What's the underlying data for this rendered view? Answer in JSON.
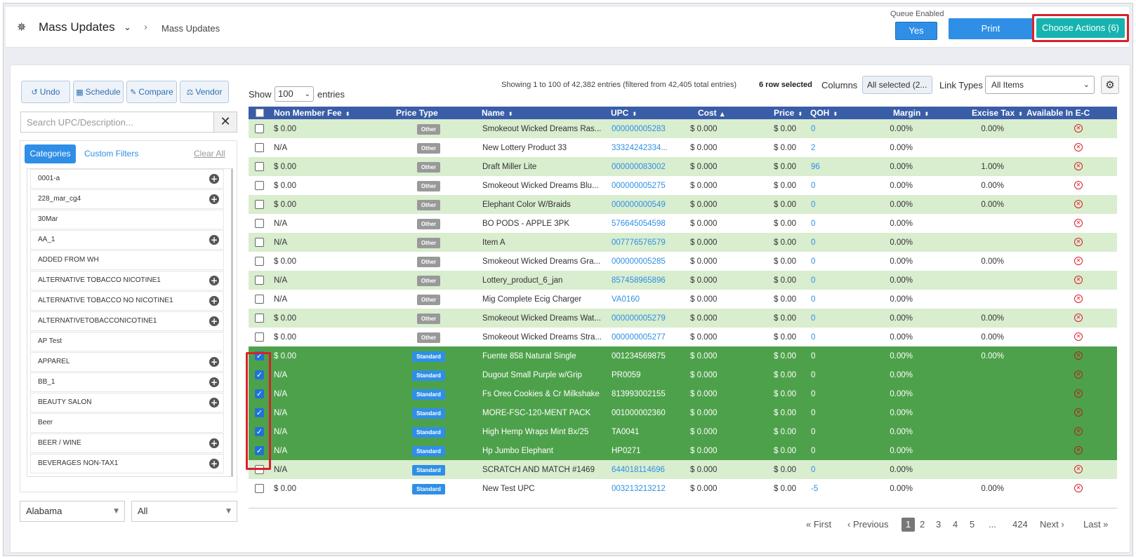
{
  "header": {
    "title": "Mass Updates",
    "breadcrumb": "Mass Updates",
    "queue_label": "Queue Enabled",
    "queue_value": "Yes",
    "print_label": "Print",
    "actions_label": "Choose Actions (6)"
  },
  "toolbar": {
    "undo": "Undo",
    "schedule": "Schedule",
    "compare": "Compare",
    "vendor": "Vendor"
  },
  "search": {
    "placeholder": "Search UPC/Description..."
  },
  "filters": {
    "tab_categories": "Categories",
    "tab_custom": "Custom Filters",
    "clear_all": "Clear All",
    "categories": [
      {
        "label": "0001-a",
        "plus": true
      },
      {
        "label": "228_mar_cg4",
        "plus": true
      },
      {
        "label": "30Mar",
        "plus": false
      },
      {
        "label": "AA_1",
        "plus": true
      },
      {
        "label": "ADDED FROM WH",
        "plus": false
      },
      {
        "label": "ALTERNATIVE TOBACCO NICOTINE1",
        "plus": true
      },
      {
        "label": "ALTERNATIVE TOBACCO NO NICOTINE1",
        "plus": true
      },
      {
        "label": "ALTERNATIVETOBACCONICOTINE1",
        "plus": true
      },
      {
        "label": "AP Test",
        "plus": false
      },
      {
        "label": "APPAREL",
        "plus": true
      },
      {
        "label": "BB_1",
        "plus": true
      },
      {
        "label": "BEAUTY SALON",
        "plus": true
      },
      {
        "label": "Beer",
        "plus": false
      },
      {
        "label": "BEER / WINE",
        "plus": true
      },
      {
        "label": "BEVERAGES NON-TAX1",
        "plus": true
      }
    ],
    "state_select": "Alabama",
    "type_select": "All"
  },
  "table_controls": {
    "show_label": "Show",
    "page_size": "100",
    "entries_label": "entries",
    "showing": "Showing 1 to 100 of 42,382 entries (filtered from 42,405 total entries)",
    "row_selected": "6 row selected",
    "columns_label": "Columns",
    "columns_value": "All selected (2...",
    "link_types_label": "Link Types",
    "link_types_value": "All Items"
  },
  "table": {
    "columns": [
      "Non Member Fee",
      "Price Type",
      "Name",
      "UPC",
      "Cost",
      "Price",
      "QOH",
      "Margin",
      "Excise Tax",
      "Available In E-C"
    ],
    "rows": [
      {
        "fee": "$ 0.00",
        "type": "Other",
        "name": "Smokeout Wicked Dreams Ras...",
        "upc": "000000005283",
        "cost": "$ 0.000",
        "price": "$ 0.00",
        "qoh": "0",
        "margin": "0.00%",
        "excise": "0.00%",
        "checked": false,
        "style": "green",
        "link": true
      },
      {
        "fee": "N/A",
        "type": "Other",
        "name": "New Lottery Product 33",
        "upc": "33324242334...",
        "cost": "$ 0.000",
        "price": "$ 0.00",
        "qoh": "2",
        "margin": "0.00%",
        "excise": "",
        "checked": false,
        "style": "white",
        "link": true
      },
      {
        "fee": "$ 0.00",
        "type": "Other",
        "name": "Draft Miller Lite",
        "upc": "000000083002",
        "cost": "$ 0.000",
        "price": "$ 0.00",
        "qoh": "96",
        "margin": "0.00%",
        "excise": "1.00%",
        "checked": false,
        "style": "green",
        "link": true
      },
      {
        "fee": "$ 0.00",
        "type": "Other",
        "name": "Smokeout Wicked Dreams Blu...",
        "upc": "000000005275",
        "cost": "$ 0.000",
        "price": "$ 0.00",
        "qoh": "0",
        "margin": "0.00%",
        "excise": "0.00%",
        "checked": false,
        "style": "white",
        "link": true
      },
      {
        "fee": "$ 0.00",
        "type": "Other",
        "name": "Elephant Color W/Braids",
        "upc": "000000000549",
        "cost": "$ 0.000",
        "price": "$ 0.00",
        "qoh": "0",
        "margin": "0.00%",
        "excise": "0.00%",
        "checked": false,
        "style": "green",
        "link": true
      },
      {
        "fee": "N/A",
        "type": "Other",
        "name": "BO PODS - APPLE 3PK",
        "upc": "576645054598",
        "cost": "$ 0.000",
        "price": "$ 0.00",
        "qoh": "0",
        "margin": "0.00%",
        "excise": "",
        "checked": false,
        "style": "white",
        "link": true
      },
      {
        "fee": "N/A",
        "type": "Other",
        "name": "Item A",
        "upc": "007776576579",
        "cost": "$ 0.000",
        "price": "$ 0.00",
        "qoh": "0",
        "margin": "0.00%",
        "excise": "",
        "checked": false,
        "style": "green",
        "link": true
      },
      {
        "fee": "$ 0.00",
        "type": "Other",
        "name": "Smokeout Wicked Dreams Gra...",
        "upc": "000000005285",
        "cost": "$ 0.000",
        "price": "$ 0.00",
        "qoh": "0",
        "margin": "0.00%",
        "excise": "0.00%",
        "checked": false,
        "style": "white",
        "link": true
      },
      {
        "fee": "N/A",
        "type": "Other",
        "name": "Lottery_product_6_jan",
        "upc": "857458965896",
        "cost": "$ 0.000",
        "price": "$ 0.00",
        "qoh": "0",
        "margin": "0.00%",
        "excise": "",
        "checked": false,
        "style": "green",
        "link": true
      },
      {
        "fee": "N/A",
        "type": "Other",
        "name": "Mig Complete Ecig Charger",
        "upc": "VA0160",
        "cost": "$ 0.000",
        "price": "$ 0.00",
        "qoh": "0",
        "margin": "0.00%",
        "excise": "",
        "checked": false,
        "style": "white",
        "link": true
      },
      {
        "fee": "$ 0.00",
        "type": "Other",
        "name": "Smokeout Wicked Dreams Wat...",
        "upc": "000000005279",
        "cost": "$ 0.000",
        "price": "$ 0.00",
        "qoh": "0",
        "margin": "0.00%",
        "excise": "0.00%",
        "checked": false,
        "style": "green",
        "link": true
      },
      {
        "fee": "$ 0.00",
        "type": "Other",
        "name": "Smokeout Wicked Dreams Stra...",
        "upc": "000000005277",
        "cost": "$ 0.000",
        "price": "$ 0.00",
        "qoh": "0",
        "margin": "0.00%",
        "excise": "0.00%",
        "checked": false,
        "style": "white",
        "link": true
      },
      {
        "fee": "$ 0.00",
        "type": "Standard",
        "name": "Fuente 858 Natural Single",
        "upc": "001234569875",
        "cost": "$ 0.000",
        "price": "$ 0.00",
        "qoh": "0",
        "margin": "0.00%",
        "excise": "0.00%",
        "checked": true,
        "style": "dark",
        "link": false
      },
      {
        "fee": "N/A",
        "type": "Standard",
        "name": "Dugout Small Purple w/Grip",
        "upc": "PR0059",
        "cost": "$ 0.000",
        "price": "$ 0.00",
        "qoh": "0",
        "margin": "0.00%",
        "excise": "",
        "checked": true,
        "style": "dark",
        "link": false
      },
      {
        "fee": "N/A",
        "type": "Standard",
        "name": "Fs Oreo Cookies & Cr Milkshake",
        "upc": "813993002155",
        "cost": "$ 0.000",
        "price": "$ 0.00",
        "qoh": "0",
        "margin": "0.00%",
        "excise": "",
        "checked": true,
        "style": "dark",
        "link": false
      },
      {
        "fee": "N/A",
        "type": "Standard",
        "name": "MORE-FSC-120-MENT PACK",
        "upc": "001000002360",
        "cost": "$ 0.000",
        "price": "$ 0.00",
        "qoh": "0",
        "margin": "0.00%",
        "excise": "",
        "checked": true,
        "style": "dark",
        "link": false
      },
      {
        "fee": "N/A",
        "type": "Standard",
        "name": "High Hemp Wraps Mint Bx/25",
        "upc": "TA0041",
        "cost": "$ 0.000",
        "price": "$ 0.00",
        "qoh": "0",
        "margin": "0.00%",
        "excise": "",
        "checked": true,
        "style": "dark",
        "link": false
      },
      {
        "fee": "N/A",
        "type": "Standard",
        "name": "Hp Jumbo Elephant",
        "upc": "HP0271",
        "cost": "$ 0.000",
        "price": "$ 0.00",
        "qoh": "0",
        "margin": "0.00%",
        "excise": "",
        "checked": true,
        "style": "dark",
        "link": false
      },
      {
        "fee": "N/A",
        "type": "Standard",
        "name": "SCRATCH AND MATCH #1469",
        "upc": "644018114696",
        "cost": "$ 0.000",
        "price": "$ 0.00",
        "qoh": "0",
        "margin": "0.00%",
        "excise": "",
        "checked": false,
        "style": "green",
        "link": true
      },
      {
        "fee": "$ 0.00",
        "type": "Standard",
        "name": "New Test UPC",
        "upc": "003213213212",
        "cost": "$ 0.000",
        "price": "$ 0.00",
        "qoh": "-5",
        "margin": "0.00%",
        "excise": "0.00%",
        "checked": false,
        "style": "white",
        "link": true
      }
    ]
  },
  "pagination": {
    "first": "« First",
    "previous": "‹ Previous",
    "pages": [
      "1",
      "2",
      "3",
      "4",
      "5",
      "...",
      "424"
    ],
    "next": "Next ›",
    "last": "Last »"
  }
}
